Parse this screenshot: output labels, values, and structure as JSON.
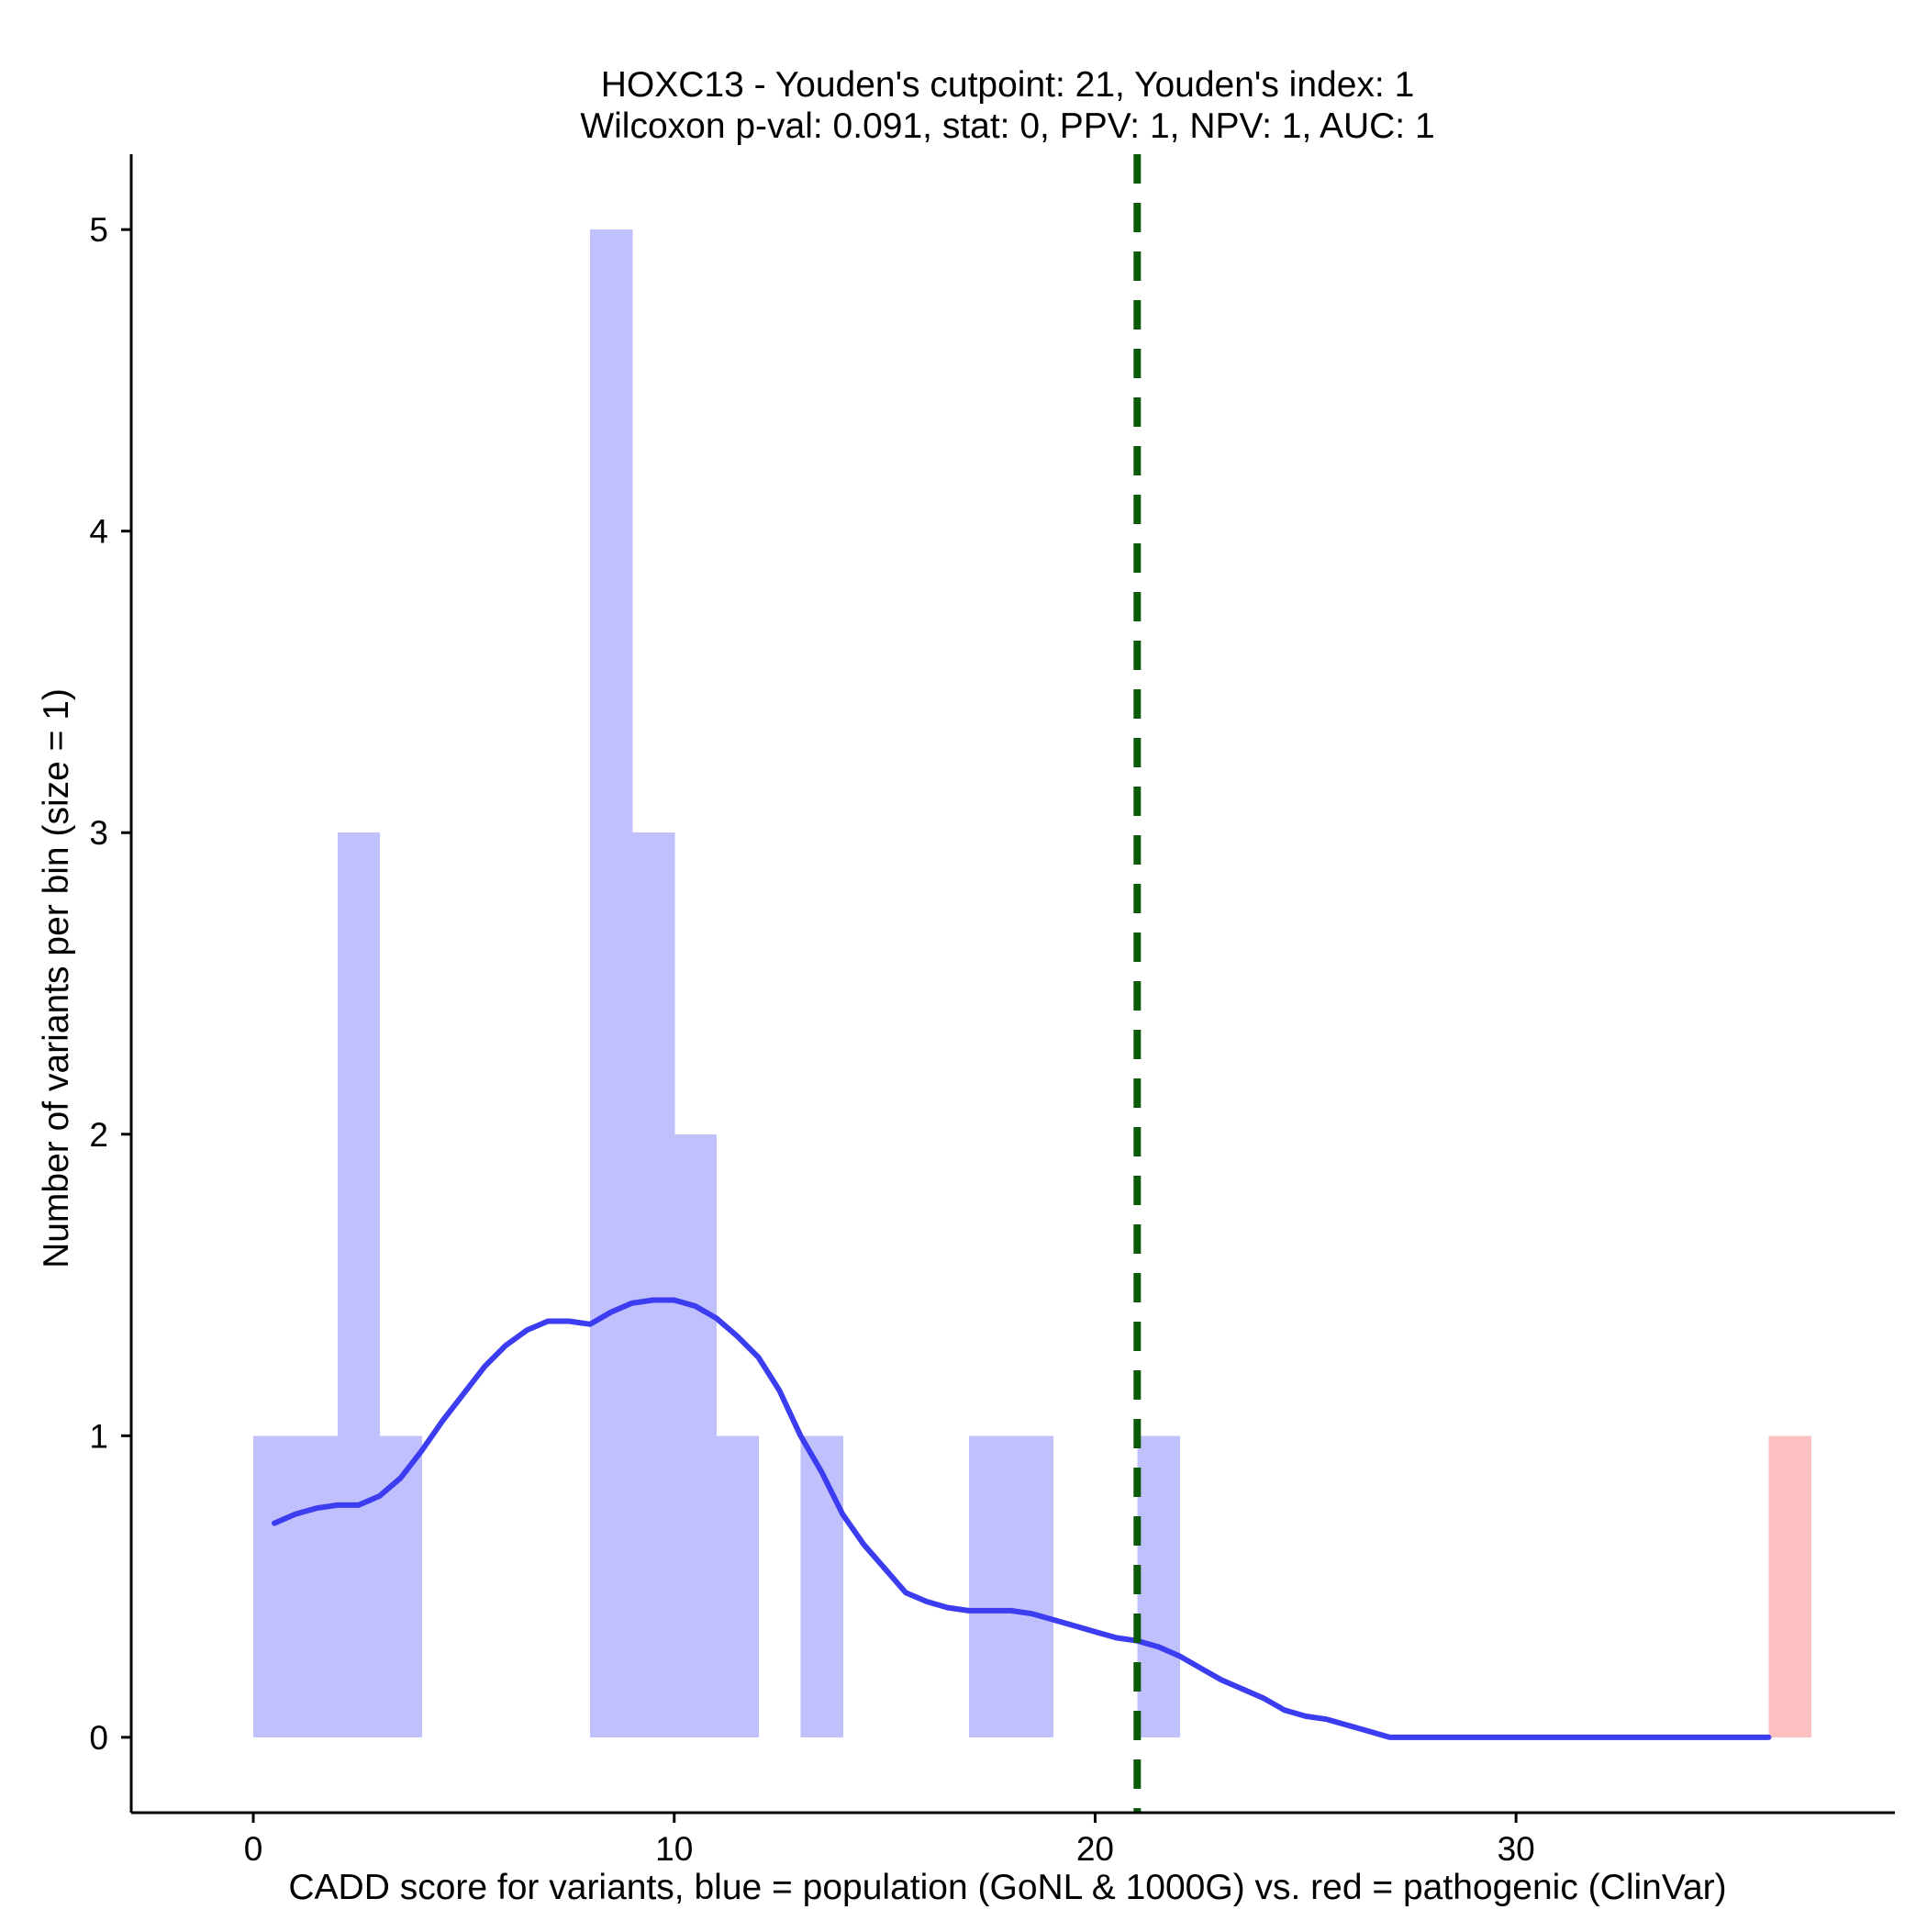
{
  "chart_data": {
    "type": "bar",
    "title_line1": "HOXC13 - Youden's cutpoint: 21, Youden's index: 1",
    "title_line2": "Wilcoxon p-val: 0.091, stat: 0, PPV: 1, NPV: 1, AUC: 1",
    "xlabel": "CADD score for variants, blue = population (GoNL & 1000G) vs. red = pathogenic (ClinVar)",
    "ylabel": "Number of variants per bin (size = 1)",
    "xlim": [
      -2.9,
      39
    ],
    "ylim": [
      -0.25,
      5.25
    ],
    "x_ticks": [
      0,
      10,
      20,
      30
    ],
    "y_ticks": [
      0,
      1,
      2,
      3,
      4,
      5
    ],
    "bin_size": 1,
    "grid": false,
    "cutpoint": 21,
    "colors": {
      "population": "#c0c0fc",
      "pathogenic": "#fdc0c0",
      "density": "#3c3cf0",
      "cutpoint": "#0a5a0a",
      "axis": "#000000"
    },
    "series": [
      {
        "name": "population",
        "bins": [
          {
            "x": 0,
            "count": 1
          },
          {
            "x": 1,
            "count": 1
          },
          {
            "x": 2,
            "count": 3
          },
          {
            "x": 3,
            "count": 1
          },
          {
            "x": 8,
            "count": 5
          },
          {
            "x": 9,
            "count": 3
          },
          {
            "x": 10,
            "count": 2
          },
          {
            "x": 11,
            "count": 1
          },
          {
            "x": 13,
            "count": 1
          },
          {
            "x": 17,
            "count": 1
          },
          {
            "x": 18,
            "count": 1
          },
          {
            "x": 21,
            "count": 1
          }
        ]
      },
      {
        "name": "pathogenic",
        "bins": [
          {
            "x": 36,
            "count": 1
          }
        ]
      }
    ],
    "density_curve": [
      [
        0.5,
        0.71
      ],
      [
        1.0,
        0.74
      ],
      [
        1.5,
        0.76
      ],
      [
        2.0,
        0.77
      ],
      [
        2.5,
        0.77
      ],
      [
        3.0,
        0.8
      ],
      [
        3.5,
        0.86
      ],
      [
        4.0,
        0.95
      ],
      [
        4.5,
        1.05
      ],
      [
        5.0,
        1.14
      ],
      [
        5.5,
        1.23
      ],
      [
        6.0,
        1.3
      ],
      [
        6.5,
        1.35
      ],
      [
        7.0,
        1.38
      ],
      [
        7.5,
        1.38
      ],
      [
        8.0,
        1.37
      ],
      [
        8.5,
        1.41
      ],
      [
        9.0,
        1.44
      ],
      [
        9.5,
        1.45
      ],
      [
        10.0,
        1.45
      ],
      [
        10.5,
        1.43
      ],
      [
        11.0,
        1.39
      ],
      [
        11.5,
        1.33
      ],
      [
        12.0,
        1.26
      ],
      [
        12.5,
        1.15
      ],
      [
        13.0,
        1.0
      ],
      [
        13.5,
        0.88
      ],
      [
        14.0,
        0.74
      ],
      [
        14.5,
        0.64
      ],
      [
        15.0,
        0.56
      ],
      [
        15.5,
        0.48
      ],
      [
        16.0,
        0.45
      ],
      [
        16.5,
        0.43
      ],
      [
        17.0,
        0.42
      ],
      [
        17.5,
        0.42
      ],
      [
        18.0,
        0.42
      ],
      [
        18.5,
        0.41
      ],
      [
        19.0,
        0.39
      ],
      [
        19.5,
        0.37
      ],
      [
        20.0,
        0.35
      ],
      [
        20.5,
        0.33
      ],
      [
        21.0,
        0.32
      ],
      [
        21.5,
        0.3
      ],
      [
        22.0,
        0.27
      ],
      [
        22.5,
        0.23
      ],
      [
        23.0,
        0.19
      ],
      [
        23.5,
        0.16
      ],
      [
        24.0,
        0.13
      ],
      [
        24.5,
        0.09
      ],
      [
        25.0,
        0.07
      ],
      [
        25.5,
        0.06
      ],
      [
        26.0,
        0.04
      ],
      [
        26.5,
        0.02
      ],
      [
        27.0,
        0.0
      ],
      [
        36.0,
        0.0
      ]
    ]
  }
}
